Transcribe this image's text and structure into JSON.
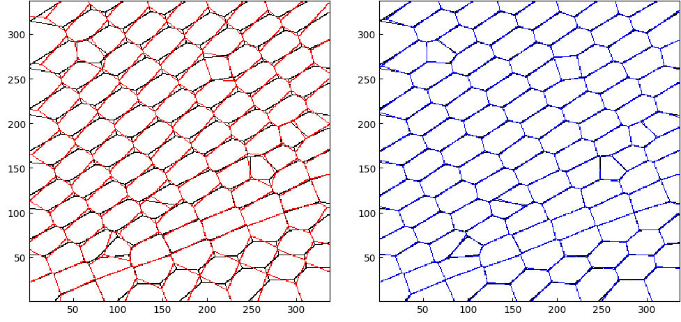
{
  "chart_data": [
    {
      "type": "tessellation",
      "xlim": [
        1,
        337
      ],
      "ylim": [
        1,
        337
      ],
      "xticks": [
        50,
        100,
        150,
        200,
        250,
        300
      ],
      "yticks": [
        50,
        100,
        150,
        200,
        250,
        300
      ],
      "seeds": {
        "x": [
          280,
          320,
          200,
          245,
          290,
          330,
          130,
          170,
          215,
          258,
          300,
          335,
          60,
          100,
          142,
          185,
          228,
          270,
          310,
          15,
          50,
          92,
          135,
          175,
          218,
          262,
          305,
          338,
          5,
          40,
          80,
          122,
          165,
          208,
          250,
          292,
          332,
          22,
          62,
          105,
          150,
          192,
          235,
          278,
          320,
          8,
          45,
          88,
          132,
          178,
          222,
          265,
          308,
          28,
          70,
          115,
          160,
          205,
          248,
          290,
          332,
          10,
          50,
          95,
          140,
          185,
          230,
          272,
          315,
          30,
          75,
          120,
          165,
          210,
          255,
          298,
          338,
          12,
          55,
          100,
          145,
          192,
          238,
          282,
          325,
          35,
          80,
          125,
          172,
          218,
          262,
          305,
          15,
          60,
          105,
          152,
          198,
          245,
          290,
          40,
          85,
          132,
          178,
          225,
          20,
          65,
          112,
          158,
          45,
          92,
          25,
          148,
          212,
          95,
          262,
          70,
          300
        ],
        "y": [
          11,
          26,
          7,
          23,
          40,
          52,
          7,
          22,
          36,
          54,
          66,
          80,
          6,
          22,
          35,
          52,
          67,
          82,
          96,
          15,
          27,
          44,
          57,
          74,
          88,
          104,
          118,
          131,
          37,
          50,
          63,
          80,
          94,
          111,
          124,
          140,
          155,
          68,
          83,
          97,
          113,
          129,
          145,
          160,
          175,
          87,
          101,
          118,
          131,
          150,
          165,
          180,
          195,
          120,
          136,
          150,
          168,
          185,
          198,
          215,
          229,
          139,
          153,
          170,
          184,
          201,
          218,
          233,
          247,
          170,
          188,
          202,
          220,
          236,
          251,
          268,
          280,
          190,
          205,
          222,
          237,
          255,
          270,
          286,
          302,
          222,
          238,
          255,
          272,
          289,
          304,
          320,
          240,
          257,
          272,
          290,
          306,
          322,
          337,
          274,
          291,
          307,
          323,
          338,
          292,
          309,
          325,
          340,
          327,
          343,
          344,
          110,
          262,
          58,
          150,
          280,
          190
        ]
      },
      "series": [
        {
          "type": "grains",
          "color": "#000000"
        },
        {
          "type": "voronoi",
          "color": "#ff0000"
        }
      ]
    },
    {
      "type": "tessellation",
      "xlim": [
        1,
        337
      ],
      "ylim": [
        1,
        337
      ],
      "xticks": [
        50,
        100,
        150,
        200,
        250,
        300
      ],
      "yticks": [
        50,
        100,
        150,
        200,
        250,
        300
      ],
      "seeds": {
        "x": [
          280,
          320,
          200,
          245,
          290,
          330,
          130,
          170,
          215,
          258,
          300,
          335,
          60,
          100,
          142,
          185,
          228,
          270,
          310,
          15,
          50,
          92,
          135,
          175,
          218,
          262,
          305,
          338,
          5,
          40,
          80,
          122,
          165,
          208,
          250,
          292,
          332,
          22,
          62,
          105,
          150,
          192,
          235,
          278,
          320,
          8,
          45,
          88,
          132,
          178,
          222,
          265,
          308,
          28,
          70,
          115,
          160,
          205,
          248,
          290,
          332,
          10,
          50,
          95,
          140,
          185,
          230,
          272,
          315,
          30,
          75,
          120,
          165,
          210,
          255,
          298,
          338,
          12,
          55,
          100,
          145,
          192,
          238,
          282,
          325,
          35,
          80,
          125,
          172,
          218,
          262,
          305,
          15,
          60,
          105,
          152,
          198,
          245,
          290,
          40,
          85,
          132,
          178,
          225,
          20,
          65,
          112,
          158,
          45,
          92,
          25,
          148,
          212,
          95,
          262,
          70,
          300
        ],
        "y": [
          11,
          26,
          7,
          23,
          40,
          52,
          7,
          22,
          36,
          54,
          66,
          80,
          6,
          22,
          35,
          52,
          67,
          82,
          96,
          15,
          27,
          44,
          57,
          74,
          88,
          104,
          118,
          131,
          37,
          50,
          63,
          80,
          94,
          111,
          124,
          140,
          155,
          68,
          83,
          97,
          113,
          129,
          145,
          160,
          175,
          87,
          101,
          118,
          131,
          150,
          165,
          180,
          195,
          120,
          136,
          150,
          168,
          185,
          198,
          215,
          229,
          139,
          153,
          170,
          184,
          201,
          218,
          233,
          247,
          170,
          188,
          202,
          220,
          236,
          251,
          268,
          280,
          190,
          205,
          222,
          237,
          255,
          270,
          286,
          302,
          222,
          238,
          255,
          272,
          289,
          304,
          320,
          240,
          257,
          272,
          290,
          306,
          322,
          337,
          274,
          291,
          307,
          323,
          338,
          292,
          309,
          325,
          340,
          327,
          343,
          344,
          110,
          262,
          58,
          150,
          280,
          190
        ]
      },
      "series": [
        {
          "type": "grains",
          "color": "#000000"
        },
        {
          "type": "fit",
          "color": "#0000ff"
        }
      ]
    }
  ]
}
